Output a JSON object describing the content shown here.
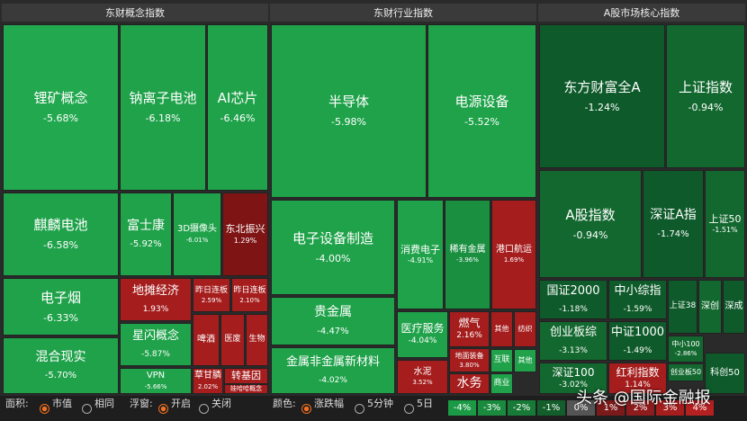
{
  "sections": [
    {
      "title": "东财概念指数",
      "tiles": [
        {
          "name": "锂矿概念",
          "change": "-5.68%"
        },
        {
          "name": "钠离子电池",
          "change": "-6.18%"
        },
        {
          "name": "AI芯片",
          "change": "-6.46%"
        },
        {
          "name": "麒麟电池",
          "change": "-6.58%"
        },
        {
          "name": "富士康",
          "change": "-5.92%"
        },
        {
          "name": "3D摄像头",
          "change": "-6.01%"
        },
        {
          "name": "东北振兴",
          "change": "1.29%"
        },
        {
          "name": "电子烟",
          "change": "-6.33%"
        },
        {
          "name": "混合现实",
          "change": "-5.70%"
        },
        {
          "name": "地摊经济",
          "change": "1.93%"
        },
        {
          "name": "昨日连板",
          "change": "2.59%"
        },
        {
          "name": "昨日连板",
          "change": "2.10%"
        },
        {
          "name": "星闪概念",
          "change": "-5.87%"
        },
        {
          "name": "VPN",
          "change": "-5.66%"
        },
        {
          "name": "啤酒"
        },
        {
          "name": "医废"
        },
        {
          "name": "生物"
        },
        {
          "name": "草甘膦",
          "change": "2.02%"
        },
        {
          "name": "转基因"
        },
        {
          "name": "娃哈哈概念"
        }
      ]
    },
    {
      "title": "东财行业指数",
      "tiles": [
        {
          "name": "半导体",
          "change": "-5.98%"
        },
        {
          "name": "电源设备",
          "change": "-5.52%"
        },
        {
          "name": "电子设备制造",
          "change": "-4.00%"
        },
        {
          "name": "贵金属",
          "change": "-4.47%"
        },
        {
          "name": "金属非金属新材料",
          "change": "-4.02%"
        },
        {
          "name": "消费电子",
          "change": "-4.91%"
        },
        {
          "name": "稀有金属",
          "change": "-3.96%"
        },
        {
          "name": "港口航运",
          "change": "1.69%"
        },
        {
          "name": "医疗服务",
          "change": "-4.04%"
        },
        {
          "name": "燃气",
          "change": "2.16%"
        },
        {
          "name": "地面装备",
          "change": "3.80%"
        },
        {
          "name": "其他"
        },
        {
          "name": "纺织"
        },
        {
          "name": "水泥",
          "change": "3.52%"
        },
        {
          "name": "水务"
        },
        {
          "name": "互联"
        },
        {
          "name": "其他"
        },
        {
          "name": "商业"
        }
      ]
    },
    {
      "title": "A股市场核心指数",
      "tiles": [
        {
          "name": "东方财富全A",
          "change": "-1.24%"
        },
        {
          "name": "上证指数",
          "change": "-0.94%"
        },
        {
          "name": "A股指数",
          "change": "-0.94%"
        },
        {
          "name": "深证A指",
          "change": "-1.74%"
        },
        {
          "name": "上证50",
          "change": "-1.51%"
        },
        {
          "name": "国证2000",
          "change": "-1.18%"
        },
        {
          "name": "中小综指",
          "change": "-1.59%"
        },
        {
          "name": "创业板综",
          "change": "-3.13%"
        },
        {
          "name": "中证1000",
          "change": "-1.49%"
        },
        {
          "name": "深证100",
          "change": "-3.02%"
        },
        {
          "name": "红利指数",
          "change": "1.14%"
        },
        {
          "name": "上证38"
        },
        {
          "name": "深创"
        },
        {
          "name": "深成"
        },
        {
          "name": "中小100",
          "change": "-2.86%"
        },
        {
          "name": "创业板50"
        },
        {
          "name": "科创50"
        }
      ]
    }
  ],
  "toolbar": {
    "area_label": "面积:",
    "area_options": [
      "市值",
      "相同"
    ],
    "float_label": "浮窗:",
    "float_options": [
      "开启",
      "关闭"
    ],
    "color_label": "颜色:",
    "color_options": [
      "涨跌幅",
      "5分钟",
      "5日"
    ]
  },
  "legend": [
    "-4%",
    "-3%",
    "-2%",
    "-1%",
    "0%",
    "1%",
    "2%",
    "3%",
    "4%"
  ],
  "watermark": "头条 @国际金融报"
}
